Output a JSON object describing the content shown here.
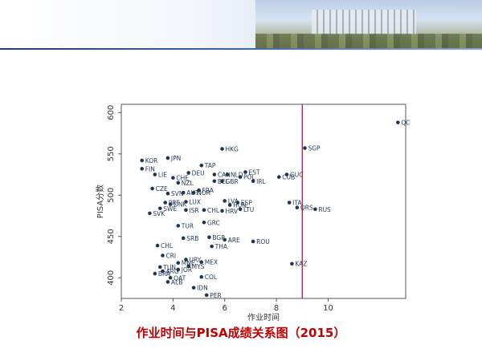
{
  "caption": "作业时间与PISA成绩关系图（2015）",
  "chart_data": {
    "type": "scatter",
    "xlabel": "作业时间",
    "ylabel": "PISA分数",
    "xlim": [
      2,
      13
    ],
    "ylim": [
      375,
      610
    ],
    "xticks": [
      2,
      4,
      6,
      8,
      10
    ],
    "yticks": [
      400,
      450,
      500,
      550,
      600
    ],
    "grid": false,
    "reference_line": {
      "x": 9,
      "color": "#c0103c"
    },
    "point_color": "#1f3554",
    "points": [
      {
        "label": "QC",
        "x": 12.7,
        "y": 588
      },
      {
        "label": "SGP",
        "x": 9.1,
        "y": 557
      },
      {
        "label": "HKG",
        "x": 5.9,
        "y": 556
      },
      {
        "label": "JPN",
        "x": 3.8,
        "y": 545
      },
      {
        "label": "KOR",
        "x": 2.8,
        "y": 542
      },
      {
        "label": "FIN",
        "x": 2.8,
        "y": 532
      },
      {
        "label": "TAP",
        "x": 5.1,
        "y": 536
      },
      {
        "label": "EST",
        "x": 6.8,
        "y": 528
      },
      {
        "label": "DEU",
        "x": 4.6,
        "y": 527
      },
      {
        "label": "CAN",
        "x": 5.6,
        "y": 525
      },
      {
        "label": "NLD",
        "x": 6.1,
        "y": 525
      },
      {
        "label": "POL",
        "x": 6.6,
        "y": 522
      },
      {
        "label": "GUC",
        "x": 8.4,
        "y": 525
      },
      {
        "label": "CUB",
        "x": 8.1,
        "y": 522
      },
      {
        "label": "LIE",
        "x": 3.3,
        "y": 525
      },
      {
        "label": "CHE",
        "x": 4.0,
        "y": 521
      },
      {
        "label": "BEL",
        "x": 5.6,
        "y": 517
      },
      {
        "label": "GBR",
        "x": 5.9,
        "y": 517
      },
      {
        "label": "IRL",
        "x": 7.1,
        "y": 517
      },
      {
        "label": "NZL",
        "x": 4.2,
        "y": 515
      },
      {
        "label": "CZE",
        "x": 3.2,
        "y": 508
      },
      {
        "label": "SVN",
        "x": 3.8,
        "y": 502
      },
      {
        "label": "AUT",
        "x": 4.4,
        "y": 503
      },
      {
        "label": "NOR",
        "x": 4.8,
        "y": 503
      },
      {
        "label": "FRA",
        "x": 5.0,
        "y": 506
      },
      {
        "label": "LVA",
        "x": 6.0,
        "y": 493
      },
      {
        "label": "ESP",
        "x": 6.5,
        "y": 491
      },
      {
        "label": "PRT",
        "x": 3.7,
        "y": 491
      },
      {
        "label": "LUX",
        "x": 4.5,
        "y": 492
      },
      {
        "label": "DNK",
        "x": 3.9,
        "y": 489
      },
      {
        "label": "HUN",
        "x": 6.2,
        "y": 488
      },
      {
        "label": "ITA",
        "x": 8.5,
        "y": 491
      },
      {
        "label": "SWE",
        "x": 3.5,
        "y": 484
      },
      {
        "label": "ISR",
        "x": 4.5,
        "y": 482
      },
      {
        "label": "CHL",
        "x": 5.2,
        "y": 482
      },
      {
        "label": "HRV",
        "x": 5.9,
        "y": 481
      },
      {
        "label": "LTU",
        "x": 6.6,
        "y": 483
      },
      {
        "label": "QRS",
        "x": 8.8,
        "y": 485
      },
      {
        "label": "RUS",
        "x": 9.5,
        "y": 483
      },
      {
        "label": "SVK",
        "x": 3.1,
        "y": 478
      },
      {
        "label": "GRC",
        "x": 5.2,
        "y": 467
      },
      {
        "label": "TUR",
        "x": 4.2,
        "y": 463
      },
      {
        "label": "SRB",
        "x": 4.4,
        "y": 448
      },
      {
        "label": "BGR",
        "x": 5.4,
        "y": 449
      },
      {
        "label": "ARE",
        "x": 6.0,
        "y": 446
      },
      {
        "label": "ROU",
        "x": 7.1,
        "y": 444
      },
      {
        "label": "THA",
        "x": 5.5,
        "y": 438
      },
      {
        "label": "CHL",
        "x": 3.4,
        "y": 439
      },
      {
        "label": "CRI",
        "x": 3.6,
        "y": 427
      },
      {
        "label": "URY",
        "x": 4.5,
        "y": 422
      },
      {
        "label": "MNE",
        "x": 4.2,
        "y": 418
      },
      {
        "label": "MEX",
        "x": 5.1,
        "y": 419
      },
      {
        "label": "KAZ",
        "x": 8.6,
        "y": 417
      },
      {
        "label": "TUN",
        "x": 3.5,
        "y": 413
      },
      {
        "label": "JOR",
        "x": 4.2,
        "y": 410
      },
      {
        "label": "MYS",
        "x": 4.6,
        "y": 414
      },
      {
        "label": "ARG",
        "x": 3.6,
        "y": 408
      },
      {
        "label": "BRA",
        "x": 3.3,
        "y": 405
      },
      {
        "label": "QAT",
        "x": 3.9,
        "y": 400
      },
      {
        "label": "COL",
        "x": 5.1,
        "y": 401
      },
      {
        "label": "ALB",
        "x": 3.8,
        "y": 395
      },
      {
        "label": "IDN",
        "x": 4.8,
        "y": 388
      },
      {
        "label": "PER",
        "x": 5.3,
        "y": 379
      }
    ]
  }
}
